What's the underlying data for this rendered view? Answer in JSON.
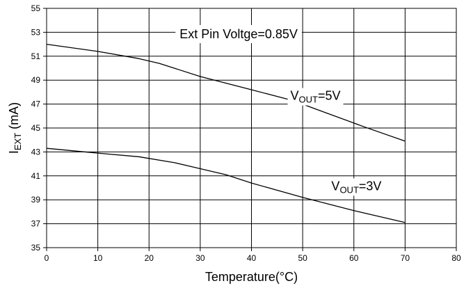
{
  "chart_data": {
    "type": "line",
    "title": "",
    "xlabel": "Temperature(°C)",
    "ylabel": {
      "main": "I",
      "sub": "EXT",
      "rest": " (mA)"
    },
    "xlim": [
      0,
      80
    ],
    "ylim": [
      35,
      55
    ],
    "xticks": [
      0,
      10,
      20,
      30,
      40,
      50,
      60,
      70,
      80
    ],
    "yticks": [
      35,
      37,
      39,
      41,
      43,
      45,
      47,
      49,
      51,
      53,
      55
    ],
    "grid": true,
    "series": [
      {
        "name": "VOUT=5V",
        "label": {
          "main": "V",
          "sub": "OUT",
          "rest": "=5V"
        },
        "x": [
          0,
          10,
          18,
          22,
          30,
          40,
          48,
          55,
          62,
          70
        ],
        "y": [
          52.0,
          51.4,
          50.8,
          50.4,
          49.3,
          48.2,
          47.3,
          46.2,
          45.1,
          43.9
        ]
      },
      {
        "name": "VOUT=3V",
        "label": {
          "main": "V",
          "sub": "OUT",
          "rest": "=3V"
        },
        "x": [
          0,
          10,
          18,
          25,
          30,
          35,
          40,
          50,
          60,
          70
        ],
        "y": [
          43.3,
          42.9,
          42.6,
          42.1,
          41.6,
          41.1,
          40.4,
          39.2,
          38.1,
          37.1
        ]
      }
    ],
    "annotations": [
      {
        "text": "Ext Pin Voltge=0.85V",
        "x": 37.5,
        "y": 52.5
      }
    ],
    "line_color": "#000000",
    "grid_color": "#000000",
    "background": "#ffffff"
  }
}
